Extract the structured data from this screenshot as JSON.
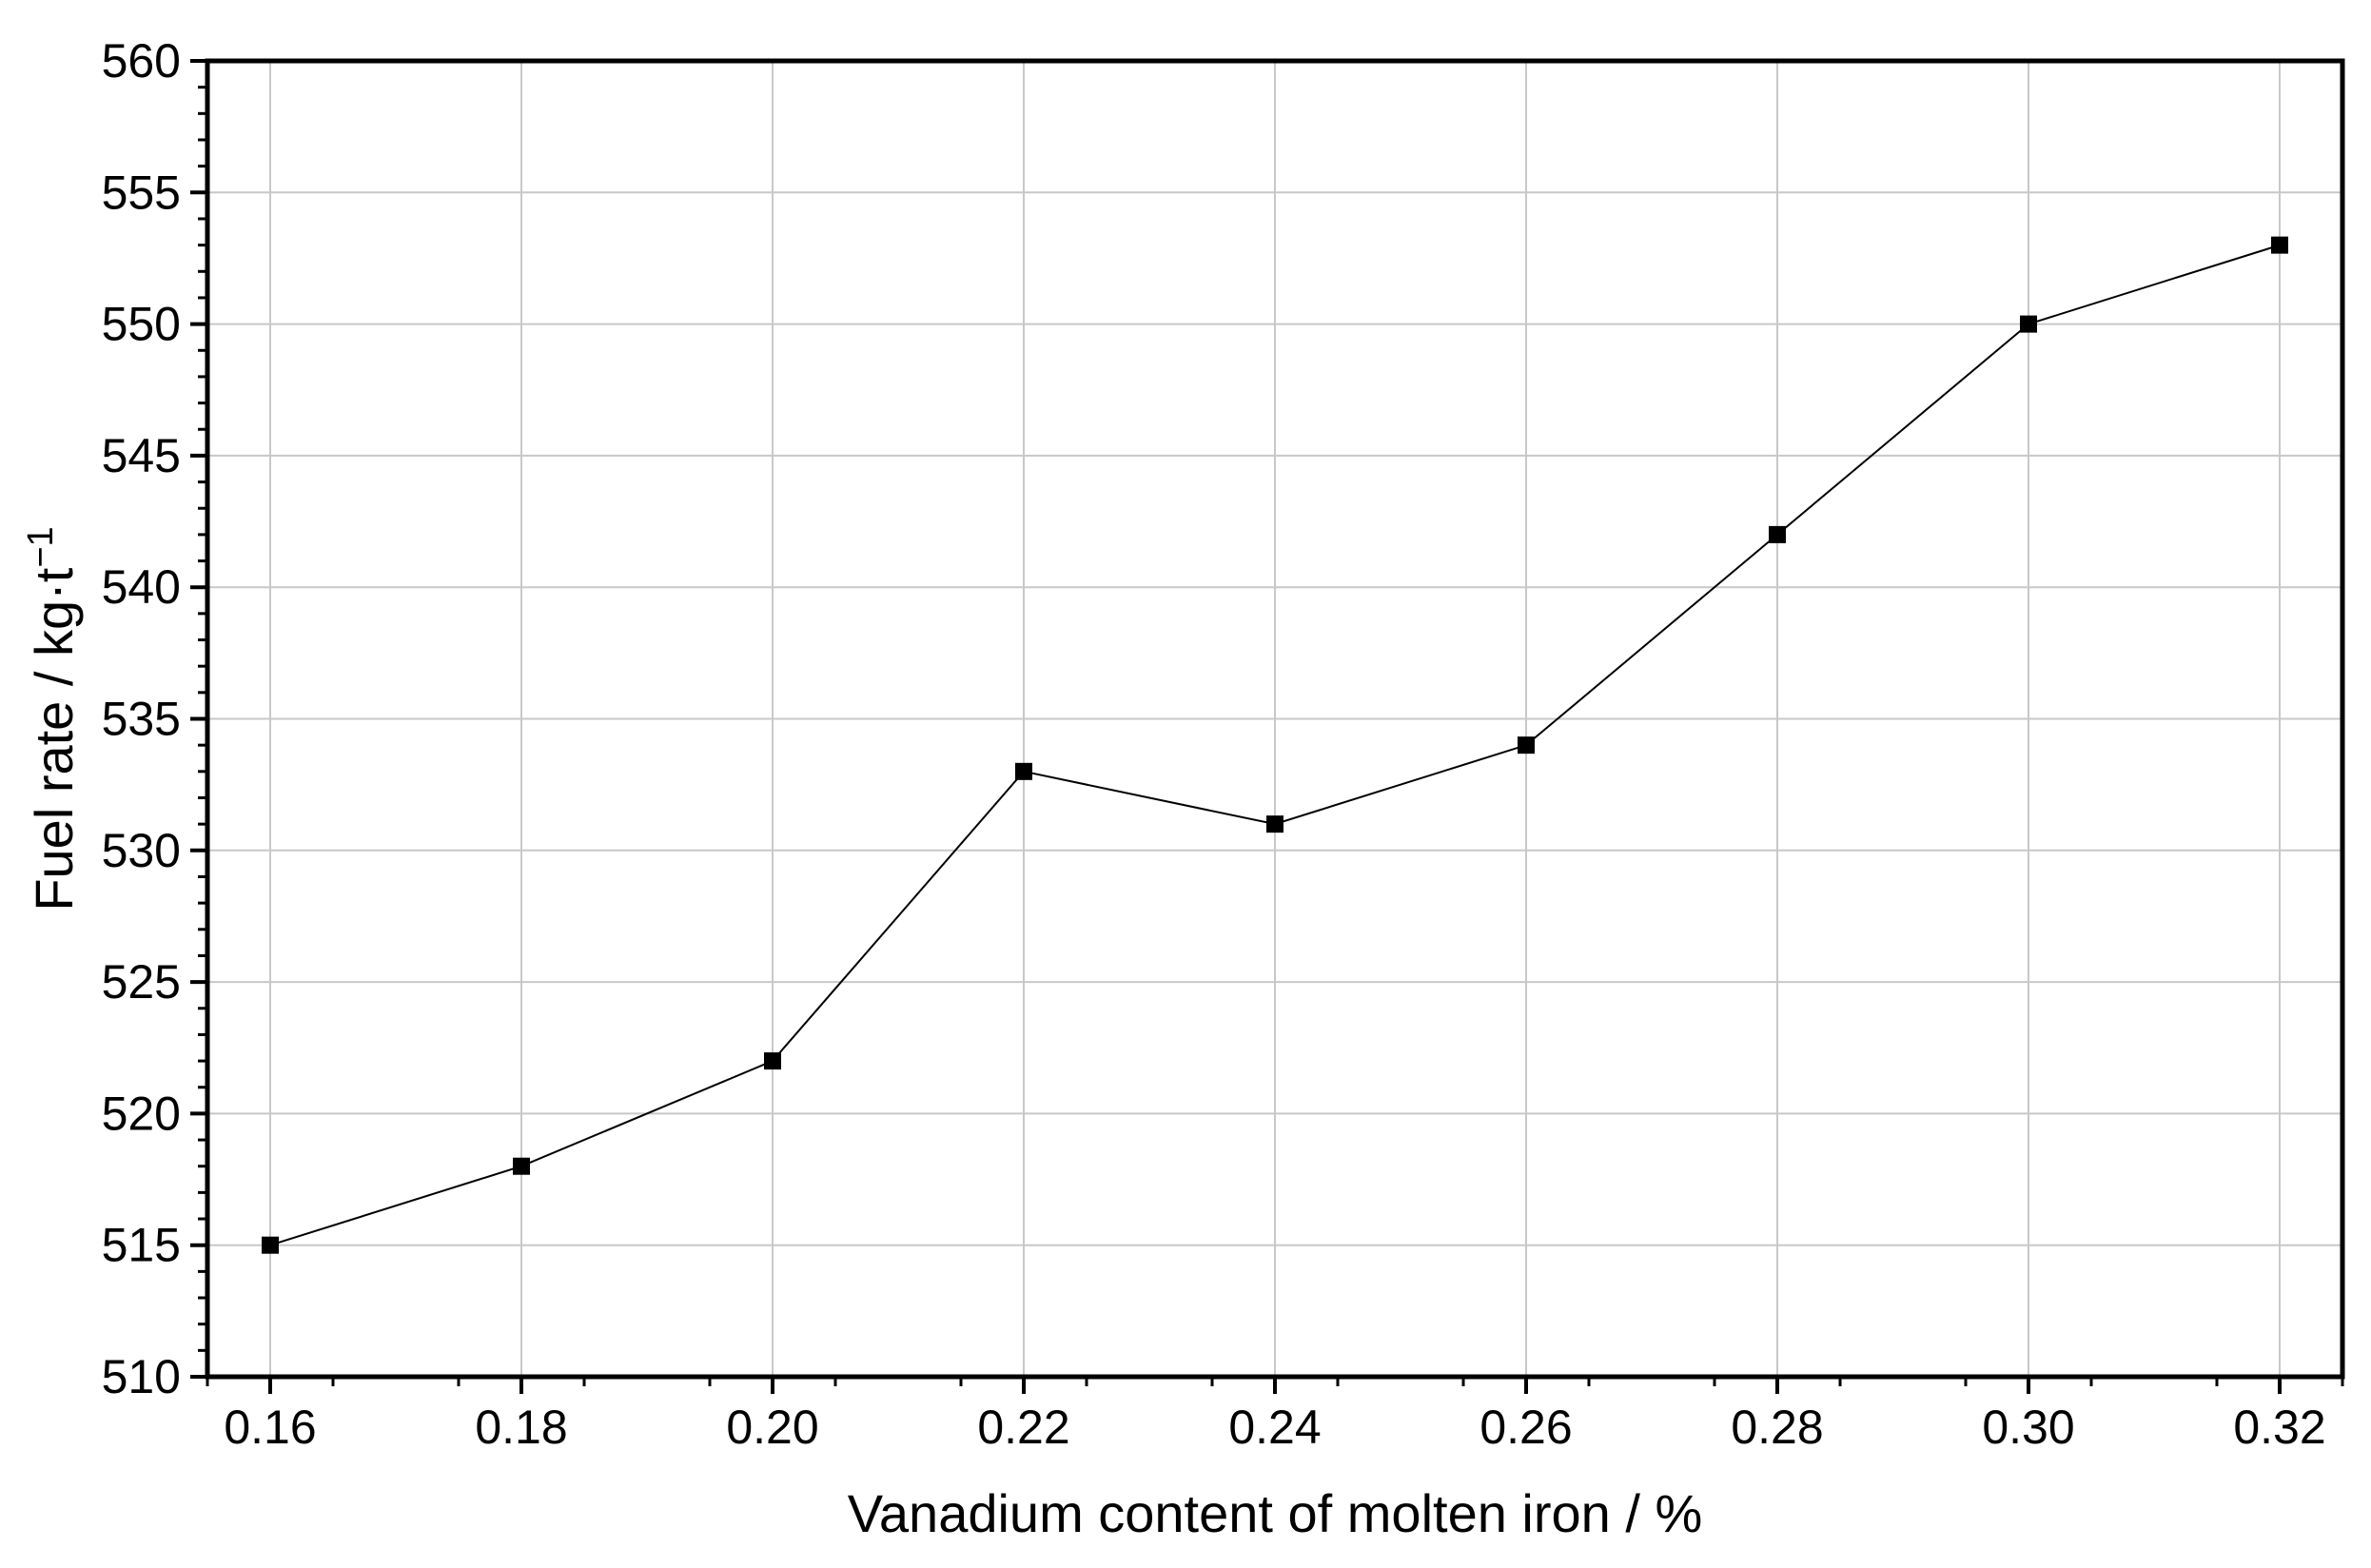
{
  "chart_data": {
    "type": "line",
    "title": "",
    "xlabel": "Vanadium content of molten iron / %",
    "ylabel": "Fuel rate / kg·t",
    "ylabel_superscript": "−1",
    "x": [
      0.16,
      0.18,
      0.2,
      0.22,
      0.24,
      0.26,
      0.28,
      0.3,
      0.32
    ],
    "series": [
      {
        "values": [
          515,
          518,
          522,
          533,
          531,
          534,
          542,
          550,
          553
        ]
      }
    ],
    "xlim": [
      0.155,
      0.325
    ],
    "ylim": [
      510,
      560
    ],
    "xticks": [
      "0.16",
      "0.18",
      "0.20",
      "0.22",
      "0.24",
      "0.26",
      "0.28",
      "0.30",
      "0.32"
    ],
    "yticks": [
      "510",
      "515",
      "520",
      "525",
      "530",
      "535",
      "540",
      "545",
      "550",
      "555",
      "560"
    ],
    "grid": true,
    "marker": "square",
    "line_color": "#000000",
    "grid_color": "#c8c8c8"
  }
}
